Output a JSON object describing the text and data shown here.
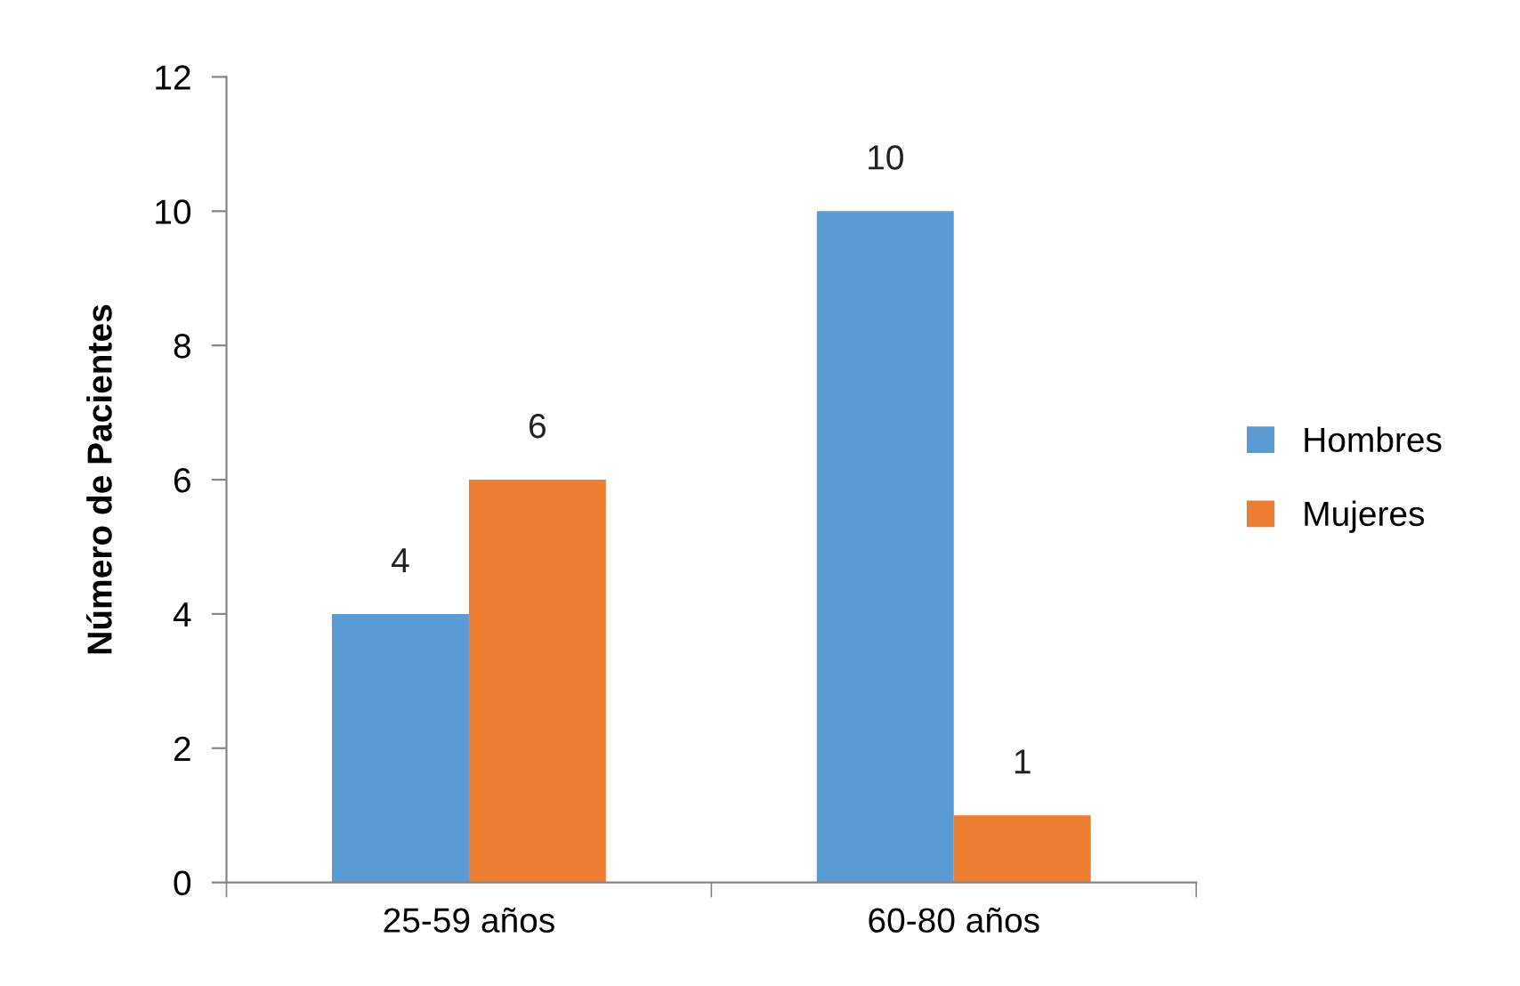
{
  "chart_data": {
    "type": "bar",
    "ylabel": "Número de Pacientes",
    "categories": [
      "25-59 años",
      "60-80 años"
    ],
    "series": [
      {
        "name": "Hombres",
        "color": "#5b9bd5",
        "values": [
          4,
          10
        ]
      },
      {
        "name": "Mujeres",
        "color": "#ed7d31",
        "values": [
          6,
          1
        ]
      }
    ],
    "ylim": [
      0,
      12
    ],
    "yticks": [
      0,
      2,
      4,
      6,
      8,
      10,
      12
    ],
    "grid": false,
    "legend": "right",
    "data_labels": true
  }
}
